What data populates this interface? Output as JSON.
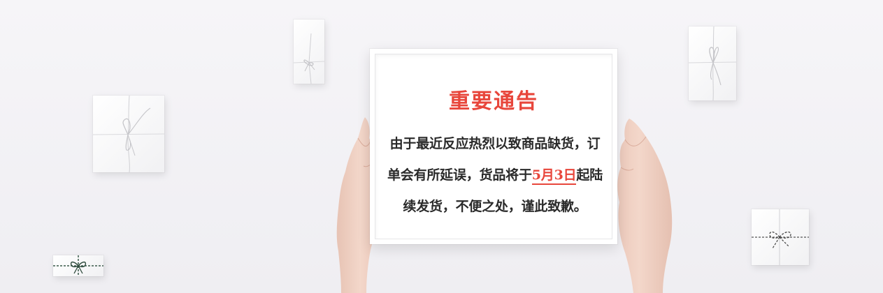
{
  "notice": {
    "title": "重要通告",
    "line1": "由于最近反应热烈以致商品缺货，订",
    "line2_before": "单会有所延误，货品将于",
    "line2_date": "5月3日",
    "line2_after": "起陆",
    "line3": "续发货，不便之处，谨此致歉。"
  },
  "colors": {
    "accent": "#e8463b",
    "text": "#2a2a2a",
    "background": "#f3f2f5"
  },
  "icons": [
    "gift-box-icon"
  ]
}
